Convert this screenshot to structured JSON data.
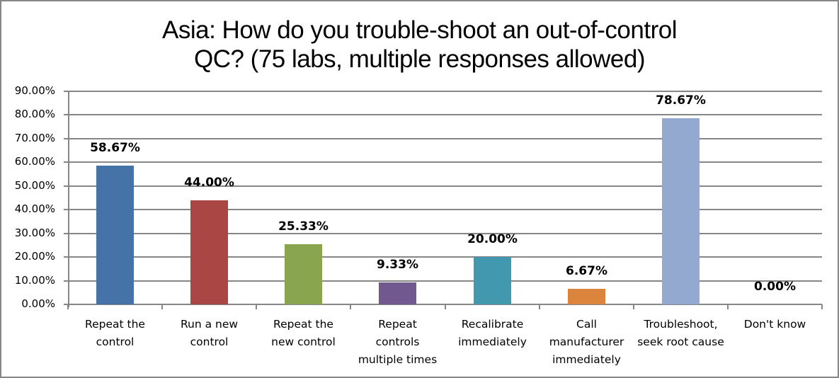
{
  "chart_data": {
    "type": "bar",
    "title": "Asia: How do you trouble-shoot an out-of-control QC?  (75 labs, multiple responses allowed)",
    "title_lines": [
      "Asia: How do you trouble-shoot an out-of-control",
      "QC?  (75 labs, multiple responses allowed)"
    ],
    "xlabel": "",
    "ylabel": "",
    "ylim": [
      0,
      90
    ],
    "yticks": [
      "0.00%",
      "10.00%",
      "20.00%",
      "30.00%",
      "40.00%",
      "50.00%",
      "60.00%",
      "70.00%",
      "80.00%",
      "90.00%"
    ],
    "grid": true,
    "legend": "none",
    "categories": [
      "Repeat the control",
      "Run a new control",
      "Repeat the new control",
      "Repeat controls multiple times",
      "Recalibrate immediately",
      "Call manufacturer immediately",
      "Troubleshoot, seek root cause",
      "Don't know"
    ],
    "category_lines": [
      [
        "Repeat the",
        "control"
      ],
      [
        "Run a new",
        "control"
      ],
      [
        "Repeat the",
        "new control"
      ],
      [
        "Repeat",
        "controls",
        "multiple times"
      ],
      [
        "Recalibrate",
        "immediately"
      ],
      [
        "Call",
        "manufacturer",
        "immediately"
      ],
      [
        "Troubleshoot,",
        "seek root cause"
      ],
      [
        "Don't know"
      ]
    ],
    "values": [
      58.67,
      44.0,
      25.33,
      9.33,
      20.0,
      6.67,
      78.67,
      0.0
    ],
    "data_labels": [
      "58.67%",
      "44.00%",
      "25.33%",
      "9.33%",
      "20.00%",
      "6.67%",
      "78.67%",
      "0.00%"
    ],
    "colors": [
      "#4572a7",
      "#aa4643",
      "#89a54e",
      "#71588f",
      "#4198af",
      "#db843d",
      "#93a9cf",
      "#b9cd96"
    ]
  }
}
